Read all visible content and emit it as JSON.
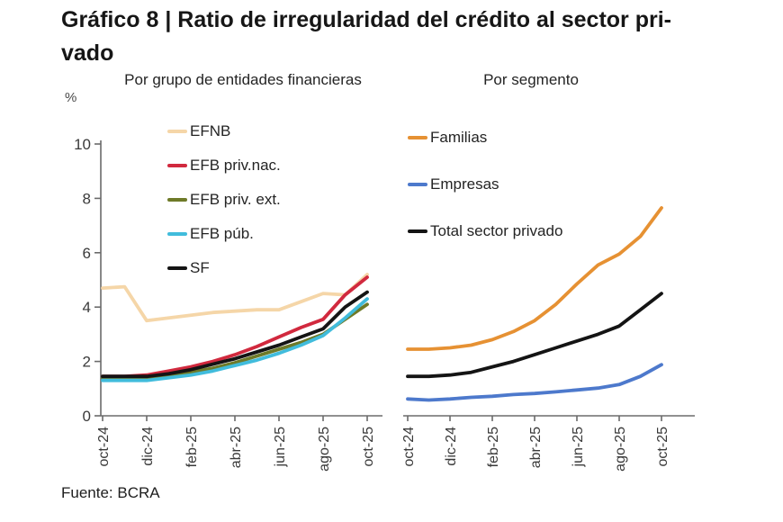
{
  "page": {
    "title": "Gráfico 8 | Ratio de irregularidad del crédito al sector privado",
    "title_line1": "Gráfico 8 | Ratio de irregularidad del crédito al sector pri-",
    "title_line2": "vado",
    "y_unit": "%",
    "source": "Fuente: BCRA"
  },
  "chart_data": [
    {
      "type": "line",
      "title": "Por grupo de entidades financieras",
      "x": [
        "oct-24",
        "nov-24",
        "dic-24",
        "ene-25",
        "feb-25",
        "mar-25",
        "abr-25",
        "may-25",
        "jun-25",
        "jul-25",
        "ago-25",
        "sep-25",
        "oct-25"
      ],
      "x_tick_labels": [
        "oct-24",
        "dic-24",
        "feb-25",
        "abr-25",
        "jun-25",
        "ago-25",
        "oct-25"
      ],
      "ylabel": "%",
      "ylim": [
        0,
        10
      ],
      "y_ticks": [
        0,
        2,
        4,
        6,
        8,
        10
      ],
      "grid": false,
      "legend_position": "upper-left-inside",
      "series": [
        {
          "name": "EFNB",
          "color": "#f5d6a8",
          "values": [
            4.7,
            4.75,
            3.5,
            3.6,
            3.7,
            3.8,
            3.85,
            3.9,
            3.9,
            4.2,
            4.5,
            4.45,
            5.2
          ]
        },
        {
          "name": "EFB priv.nac.",
          "color": "#d1293e",
          "values": [
            1.45,
            1.45,
            1.5,
            1.65,
            1.8,
            2.0,
            2.25,
            2.55,
            2.9,
            3.25,
            3.55,
            4.45,
            5.1
          ]
        },
        {
          "name": "EFB priv. ext.",
          "color": "#6e7a28",
          "values": [
            1.4,
            1.4,
            1.4,
            1.5,
            1.6,
            1.75,
            1.95,
            2.2,
            2.45,
            2.7,
            3.0,
            3.55,
            4.1
          ]
        },
        {
          "name": "EFB púb.",
          "color": "#41bcdc",
          "values": [
            1.3,
            1.3,
            1.3,
            1.4,
            1.5,
            1.65,
            1.85,
            2.05,
            2.3,
            2.6,
            2.95,
            3.6,
            4.3
          ]
        },
        {
          "name": "SF",
          "color": "#141414",
          "values": [
            1.45,
            1.45,
            1.45,
            1.55,
            1.7,
            1.9,
            2.1,
            2.35,
            2.6,
            2.9,
            3.2,
            4.0,
            4.55
          ]
        }
      ]
    },
    {
      "type": "line",
      "title": "Por segmento",
      "x": [
        "oct-24",
        "nov-24",
        "dic-24",
        "ene-25",
        "feb-25",
        "mar-25",
        "abr-25",
        "may-25",
        "jun-25",
        "jul-25",
        "ago-25",
        "sep-25",
        "oct-25"
      ],
      "x_tick_labels": [
        "oct-24",
        "dic-24",
        "feb-25",
        "abr-25",
        "jun-25",
        "ago-25",
        "oct-25"
      ],
      "ylim": [
        0,
        10
      ],
      "y_ticks": [],
      "grid": false,
      "legend_position": "upper-left-inside",
      "series": [
        {
          "name": "Familias",
          "color": "#e69133",
          "values": [
            2.45,
            2.45,
            2.5,
            2.6,
            2.8,
            3.1,
            3.5,
            4.1,
            4.85,
            5.55,
            5.95,
            6.6,
            7.65
          ]
        },
        {
          "name": "Empresas",
          "color": "#4d79cc",
          "values": [
            0.62,
            0.58,
            0.62,
            0.68,
            0.72,
            0.78,
            0.82,
            0.88,
            0.95,
            1.02,
            1.15,
            1.45,
            1.88
          ]
        },
        {
          "name": "Total sector privado",
          "color": "#141414",
          "values": [
            1.45,
            1.45,
            1.5,
            1.6,
            1.8,
            2.0,
            2.25,
            2.5,
            2.75,
            3.0,
            3.3,
            3.9,
            4.5
          ]
        }
      ]
    }
  ]
}
